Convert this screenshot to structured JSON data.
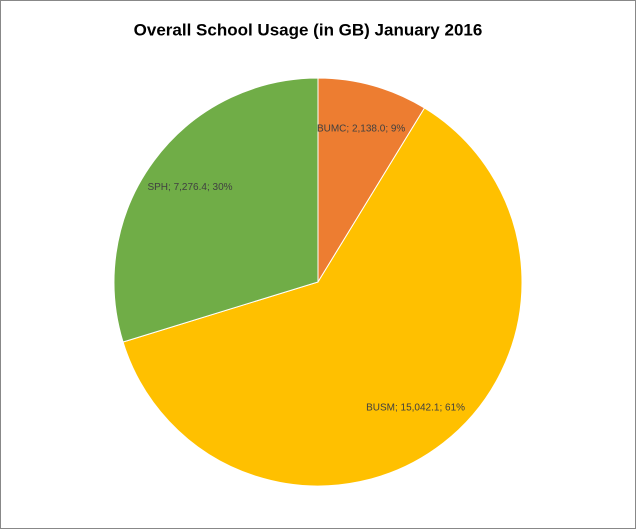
{
  "chart_data": {
    "type": "pie",
    "title": "Overall School Usage (in GB) January 2016",
    "categories": [
      "BUMC",
      "BUSM",
      "SPH"
    ],
    "values": [
      2138.0,
      15042.1,
      7276.4
    ],
    "value_labels": [
      "BUMC; 2,138.0; 9%",
      "BUSM; 15,042.1; 61%",
      "SPH; 7,276.4; 30%"
    ],
    "colors": [
      "#ED7D31",
      "#FFC000",
      "#70AD47"
    ]
  }
}
